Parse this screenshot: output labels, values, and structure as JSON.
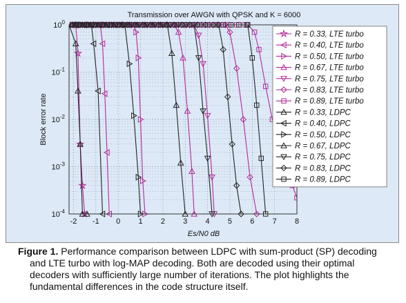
{
  "chart_data": {
    "type": "line",
    "title": "Transmission over AWGN with QPSK and K = 6000",
    "xlabel": "Es/N0 dB",
    "ylabel": "Block error rate",
    "xlim": [
      -2.2,
      8
    ],
    "ylim": [
      0.0001,
      1
    ],
    "yscale": "log",
    "grid": true,
    "legend_position": "top-right",
    "x_ticks": [
      "-2",
      "-1",
      "0",
      "1",
      "2",
      "3",
      "4",
      "5",
      "6",
      "7",
      "8"
    ],
    "y_ticks": [
      "10^0",
      "10^-1",
      "10^-2",
      "10^-3",
      "10^-4"
    ],
    "colors": {
      "lte": "#b22a9a",
      "ldpc": "#222222",
      "background": "#dde9f6",
      "grid": "#9aa8b8"
    },
    "series": [
      {
        "name": "R = 0.33, LTE turbo",
        "family": "lte",
        "marker": "star",
        "x": [
          -2.2,
          -1.9,
          -1.8,
          -1.7,
          -1.6,
          -1.5
        ],
        "y": [
          1,
          1,
          0.25,
          0.003,
          0.0004,
          0.0001
        ]
      },
      {
        "name": "R = 0.40, LTE turbo",
        "family": "lte",
        "marker": "tri-left",
        "x": [
          -2.2,
          -0.8,
          -0.7,
          -0.6,
          -0.5,
          -0.4
        ],
        "y": [
          1,
          1,
          0.4,
          0.035,
          0.002,
          0.0001
        ]
      },
      {
        "name": "R = 0.50, LTE turbo",
        "family": "lte",
        "marker": "tri-right",
        "x": [
          -2.2,
          0.7,
          0.8,
          0.9,
          1.0,
          1.1,
          1.2
        ],
        "y": [
          1,
          1,
          0.7,
          0.2,
          0.01,
          0.0005,
          0.0001
        ]
      },
      {
        "name": "R = 0.67, LTE turbo",
        "family": "lte",
        "marker": "tri-up",
        "x": [
          -2.2,
          2.5,
          2.7,
          2.9,
          3.1,
          3.3,
          3.4
        ],
        "y": [
          1,
          1,
          0.7,
          0.2,
          0.015,
          0.0008,
          0.0001
        ]
      },
      {
        "name": "R = 0.75, LTE turbo",
        "family": "lte",
        "marker": "tri-down",
        "x": [
          -2.2,
          3.4,
          3.6,
          3.8,
          4.0,
          4.2,
          4.3
        ],
        "y": [
          1,
          1,
          0.6,
          0.15,
          0.012,
          0.0006,
          0.0001
        ]
      },
      {
        "name": "R = 0.83, LTE turbo",
        "family": "lte",
        "marker": "diamond",
        "x": [
          -2.2,
          4.8,
          5.0,
          5.3,
          5.6,
          5.9,
          6.2
        ],
        "y": [
          1,
          1,
          0.7,
          0.12,
          0.01,
          0.0006,
          0.0001
        ]
      },
      {
        "name": "R = 0.89, LTE turbo",
        "family": "lte",
        "marker": "square",
        "x": [
          -2.2,
          5.8,
          6.1,
          6.3,
          6.6,
          6.9,
          7.2,
          7.5,
          7.8,
          8.0
        ],
        "y": [
          1,
          1,
          0.7,
          0.3,
          0.05,
          0.01,
          0.003,
          0.001,
          0.0004,
          0.00022
        ]
      },
      {
        "name": "R = 0.33, LDPC",
        "family": "ldpc",
        "marker": "tri-up",
        "x": [
          -2.2,
          -1.9,
          -1.8,
          -1.7,
          -1.6,
          -1.4
        ],
        "y": [
          1,
          0.4,
          0.04,
          0.003,
          0.0001,
          0.0001
        ]
      },
      {
        "name": "R = 0.40, LDPC",
        "family": "ldpc",
        "marker": "tri-left",
        "x": [
          -2.2,
          -1.2,
          -1.1,
          -0.9,
          -0.7
        ],
        "y": [
          1,
          1,
          0.4,
          0.04,
          0.0001
        ]
      },
      {
        "name": "R = 0.50, LDPC",
        "family": "ldpc",
        "marker": "tri-right",
        "x": [
          -2.2,
          0.3,
          0.5,
          0.7,
          0.9,
          1.0
        ],
        "y": [
          1,
          1,
          0.15,
          0.012,
          0.0006,
          0.0001
        ]
      },
      {
        "name": "R = 0.67, LDPC",
        "family": "ldpc",
        "marker": "tri-up",
        "x": [
          -2.2,
          2.2,
          2.4,
          2.6,
          2.8,
          3.0
        ],
        "y": [
          1,
          1,
          0.25,
          0.02,
          0.0012,
          0.0001
        ]
      },
      {
        "name": "R = 0.75, LDPC",
        "family": "ldpc",
        "marker": "tri-down",
        "x": [
          -2.2,
          3.4,
          3.6,
          3.8,
          4.0,
          4.2
        ],
        "y": [
          1,
          1,
          0.2,
          0.015,
          0.0015,
          0.0001
        ]
      },
      {
        "name": "R = 0.83, LDPC",
        "family": "ldpc",
        "marker": "diamond",
        "x": [
          -2.2,
          4.5,
          4.7,
          4.9,
          5.1,
          5.3,
          5.5
        ],
        "y": [
          1,
          1,
          0.3,
          0.03,
          0.003,
          0.0004,
          0.0001
        ]
      },
      {
        "name": "R = 0.89, LDPC",
        "family": "ldpc",
        "marker": "square",
        "x": [
          -2.2,
          5.8,
          6.0,
          6.2,
          6.4,
          6.6
        ],
        "y": [
          1,
          1,
          0.2,
          0.02,
          0.0015,
          0.0001
        ]
      }
    ]
  },
  "caption": {
    "label": "Figure 1.",
    "text": "Performance comparison between LDPC with sum-product (SP) decoding and LTE turbo with log-MAP decoding. Both are decoded using their optimal decoders with sufficiently large number of iterations. The plot highlights the fundamental differences in the code structure itself."
  }
}
